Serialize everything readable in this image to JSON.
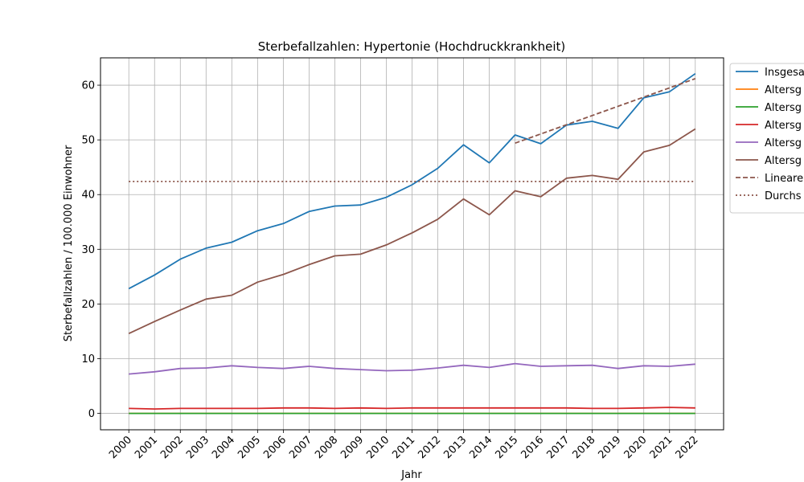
{
  "chart_data": {
    "type": "line",
    "title": "Sterbefallzahlen: Hypertonie (Hochdruckkrankheit)",
    "xlabel": "Jahr",
    "ylabel": "Sterbefallzahlen / 100.000 Einwohner",
    "x": [
      2000,
      2001,
      2002,
      2003,
      2004,
      2005,
      2006,
      2007,
      2008,
      2009,
      2010,
      2011,
      2012,
      2013,
      2014,
      2015,
      2016,
      2017,
      2018,
      2019,
      2020,
      2021,
      2022
    ],
    "ylim": [
      -3,
      65
    ],
    "yticks": [
      0,
      10,
      20,
      30,
      40,
      50,
      60
    ],
    "grid": true,
    "legend_position": "right (clipped)",
    "series": [
      {
        "name": "Insgesa",
        "color": "#1f77b4",
        "style": "solid",
        "values": [
          22.8,
          25.3,
          28.2,
          30.2,
          31.3,
          33.4,
          34.7,
          36.9,
          37.9,
          38.1,
          39.5,
          41.8,
          44.8,
          49.1,
          45.8,
          50.9,
          49.3,
          52.7,
          53.4,
          52.1,
          57.7,
          58.8,
          62.1
        ]
      },
      {
        "name": "Altersg",
        "color": "#ff7f0e",
        "style": "solid",
        "values": [
          0.0,
          0.0,
          0.0,
          0.0,
          0.0,
          0.0,
          0.0,
          0.0,
          0.0,
          0.0,
          0.0,
          0.0,
          0.0,
          0.0,
          0.0,
          0.0,
          0.0,
          0.0,
          0.0,
          0.0,
          0.0,
          0.0,
          0.0
        ]
      },
      {
        "name": "Altersg",
        "color": "#2ca02c",
        "style": "solid",
        "values": [
          0.0,
          0.0,
          0.0,
          0.0,
          0.0,
          0.0,
          0.0,
          0.0,
          0.0,
          0.0,
          0.0,
          0.0,
          0.0,
          0.0,
          0.0,
          0.0,
          0.0,
          0.0,
          0.0,
          0.0,
          0.0,
          0.0,
          0.0
        ]
      },
      {
        "name": "Altersg",
        "color": "#d62728",
        "style": "solid",
        "values": [
          0.9,
          0.8,
          0.9,
          0.9,
          0.9,
          0.9,
          1.0,
          1.0,
          0.9,
          1.0,
          0.9,
          1.0,
          1.0,
          1.0,
          1.0,
          1.0,
          1.0,
          1.0,
          0.9,
          0.9,
          1.0,
          1.1,
          1.0
        ]
      },
      {
        "name": "Altersg",
        "color": "#9467bd",
        "style": "solid",
        "values": [
          7.2,
          7.6,
          8.2,
          8.3,
          8.7,
          8.4,
          8.2,
          8.6,
          8.2,
          8.0,
          7.8,
          7.9,
          8.3,
          8.8,
          8.4,
          9.1,
          8.6,
          8.7,
          8.8,
          8.2,
          8.7,
          8.6,
          9.0
        ]
      },
      {
        "name": "Altersg",
        "color": "#8c564b",
        "style": "solid",
        "values": [
          14.6,
          16.8,
          18.9,
          20.9,
          21.6,
          24.0,
          25.4,
          27.2,
          28.8,
          29.1,
          30.8,
          33.0,
          35.5,
          39.2,
          36.3,
          40.7,
          39.6,
          43.0,
          43.5,
          42.8,
          47.8,
          49.0,
          52.0
        ]
      },
      {
        "name": "Lineare",
        "color": "#8c564b",
        "style": "dashed",
        "x": [
          2015,
          2022
        ],
        "values": [
          49.4,
          61.2
        ]
      },
      {
        "name": "Durchs",
        "color": "#8c564b",
        "style": "dotted",
        "x": [
          2000,
          2022
        ],
        "values": [
          42.4,
          42.4
        ]
      }
    ]
  }
}
